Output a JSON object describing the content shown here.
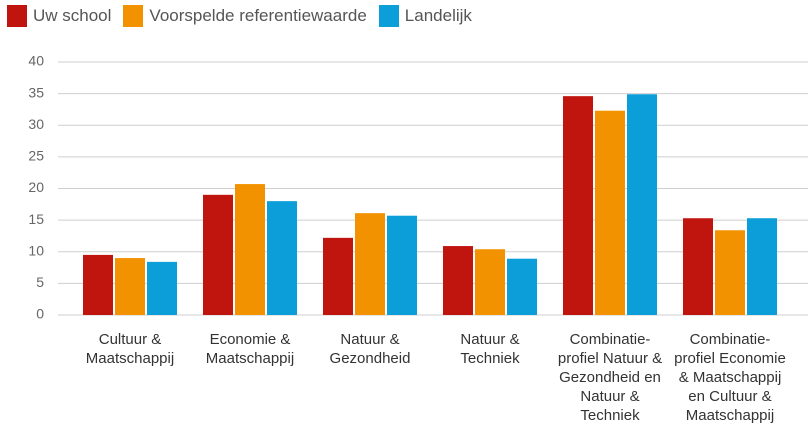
{
  "chart_data": {
    "type": "bar",
    "categories": [
      "Cultuur & Maatschappij",
      "Economie & Maatschappij",
      "Natuur & Gezondheid",
      "Natuur & Techniek",
      "Combinatie-profiel Natuur & Gezondheid en Natuur & Techniek",
      "Combinatie-profiel Economie & Maatschappij en Cultuur & Maatschappij"
    ],
    "series": [
      {
        "name": "Uw school",
        "color": "#c0150f",
        "values": [
          9.5,
          19.0,
          12.2,
          10.9,
          34.6,
          15.3
        ]
      },
      {
        "name": "Voorspelde referentiewaarde",
        "color": "#f39200",
        "values": [
          9.0,
          20.7,
          16.1,
          10.4,
          32.3,
          13.4
        ]
      },
      {
        "name": "Landelijk",
        "color": "#0c9ed9",
        "values": [
          8.4,
          18.0,
          15.7,
          8.9,
          34.9,
          15.3
        ]
      }
    ],
    "ylim": [
      0,
      40
    ],
    "yticks": [
      0,
      5,
      10,
      15,
      20,
      25,
      30,
      35,
      40
    ],
    "grid": true,
    "legend": "top-left"
  }
}
